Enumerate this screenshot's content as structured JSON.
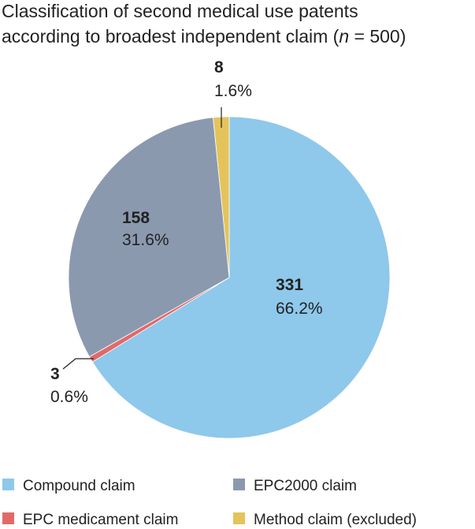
{
  "chart_data": {
    "type": "pie",
    "title": {
      "line1": "Classification of second medical use patents",
      "line2": "according to broadest independent claim (",
      "italic": "n",
      "end": " = 500)"
    },
    "categories": [
      "Compound claim",
      "EPC medicament claim",
      "EPC2000 claim",
      "Method claim (excluded)"
    ],
    "values": [
      331,
      3,
      158,
      8
    ],
    "percentages": [
      66.2,
      0.6,
      31.6,
      1.6
    ],
    "percentage_labels": [
      "66.2%",
      "0.6%",
      "31.6%",
      "1.6%"
    ],
    "colors": [
      "#8ec8eb",
      "#e06a6a",
      "#8b99af",
      "#e4c45a"
    ]
  }
}
